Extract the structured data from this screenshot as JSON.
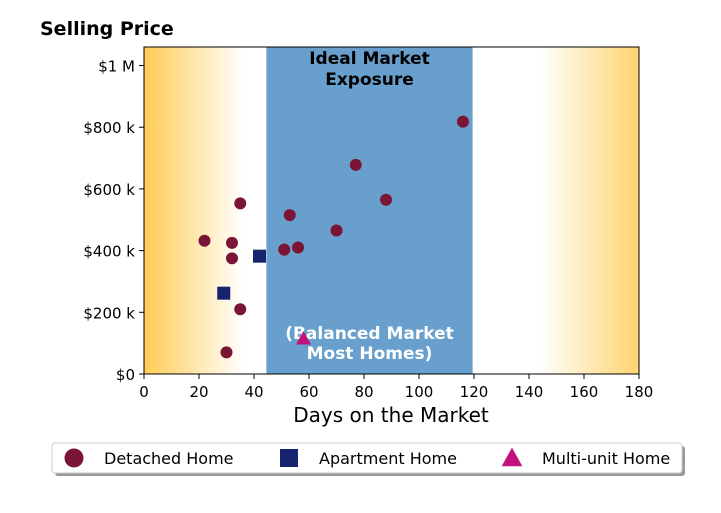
{
  "chart_data": {
    "type": "scatter",
    "title": "Selling Price",
    "xlabel": "Days on the Market",
    "ylabel": "",
    "xlim": [
      0,
      180
    ],
    "ylim": [
      0,
      1060000
    ],
    "x_ticks": [
      0,
      20,
      40,
      60,
      80,
      100,
      120,
      140,
      160,
      180
    ],
    "x_tick_labels": [
      "0",
      "20",
      "40",
      "60",
      "80",
      "100",
      "120",
      "140",
      "160",
      "180"
    ],
    "y_ticks": [
      0,
      200000,
      400000,
      600000,
      800000,
      1000000
    ],
    "y_tick_labels": [
      "$0",
      "$200 k",
      "$400 k",
      "$600 k",
      "$800 k",
      "$1 M"
    ],
    "grid": false,
    "legend_position": "below chart",
    "band": {
      "x_range": [
        44.5,
        119.5
      ],
      "color": "#689fcc",
      "label_top": "Ideal Market\nExposure",
      "label_bottom": "(Balanced Market\nMost Homes)"
    },
    "background_gradient_color": "#ffcc55",
    "series": [
      {
        "name": "Detached Home",
        "marker": "circle",
        "color": "#7b1535",
        "points": [
          {
            "x": 22,
            "y": 432000
          },
          {
            "x": 30,
            "y": 70000
          },
          {
            "x": 32,
            "y": 425000
          },
          {
            "x": 32,
            "y": 375000
          },
          {
            "x": 35,
            "y": 553000
          },
          {
            "x": 35,
            "y": 210000
          },
          {
            "x": 51,
            "y": 403000
          },
          {
            "x": 53,
            "y": 515000
          },
          {
            "x": 56,
            "y": 410000
          },
          {
            "x": 70,
            "y": 465000
          },
          {
            "x": 77,
            "y": 678000
          },
          {
            "x": 88,
            "y": 565000
          },
          {
            "x": 116,
            "y": 818000
          }
        ]
      },
      {
        "name": "Apartment Home",
        "marker": "square",
        "color": "#16236e",
        "points": [
          {
            "x": 29,
            "y": 262000
          },
          {
            "x": 42,
            "y": 382000
          }
        ]
      },
      {
        "name": "Multi-unit Home",
        "marker": "triangle",
        "color": "#c0117e",
        "points": [
          {
            "x": 58,
            "y": 115000
          }
        ]
      }
    ]
  }
}
